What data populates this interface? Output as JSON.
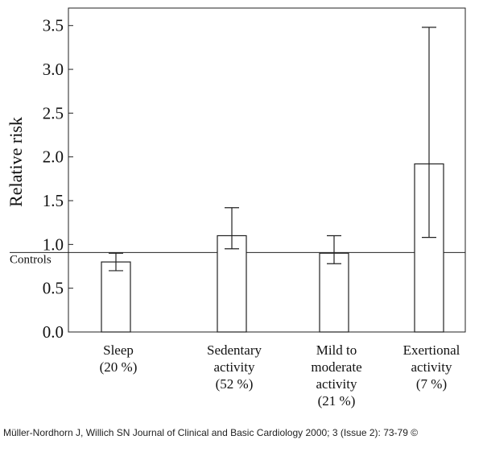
{
  "chart_data": {
    "type": "bar",
    "ylabel": "Relative risk",
    "ylim": [
      0,
      3.7
    ],
    "yticks": [
      0.0,
      0.5,
      1.0,
      1.5,
      2.0,
      2.5,
      3.0,
      3.5
    ],
    "ytick_labels": [
      "0.0",
      "0.5",
      "1.0",
      "1.5",
      "2.0",
      "2.5",
      "3.0",
      "3.5"
    ],
    "categories": [
      [
        "Sleep",
        "(20 %)"
      ],
      [
        "Sedentary",
        "activity",
        "(52 %)"
      ],
      [
        "Mild to",
        "moderate",
        "activity",
        "(21 %)"
      ],
      [
        "Exertional",
        "activity",
        "(7 %)"
      ]
    ],
    "values": [
      0.8,
      1.1,
      0.9,
      1.92
    ],
    "error_low": [
      0.7,
      0.95,
      0.78,
      1.08
    ],
    "error_high": [
      0.9,
      1.42,
      1.1,
      3.48
    ],
    "reference_line": {
      "value": 1.0,
      "label": "Controls"
    },
    "grid": false
  },
  "caption": "Müller-Nordhorn J, Willich SN Journal of Clinical and Basic Cardiology 2000; 3 (Issue 2): 73-79 ©"
}
